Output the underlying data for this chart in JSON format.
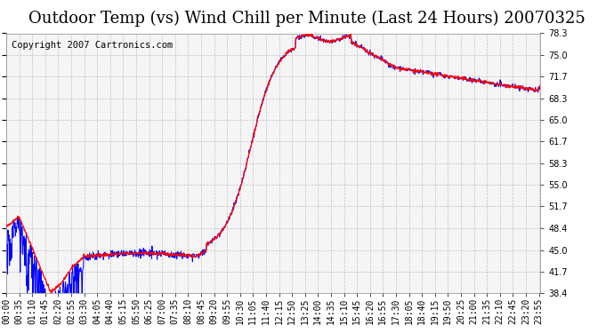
{
  "title": "Outdoor Temp (vs) Wind Chill per Minute (Last 24 Hours) 20070325",
  "copyright_text": "Copyright 2007 Cartronics.com",
  "background_color": "#ffffff",
  "plot_background_color": "#ffffff",
  "grid_color": "#aaaaaa",
  "line_color_temp": "#ff0000",
  "line_color_windchill": "#0000ff",
  "ylim": [
    38.4,
    78.3
  ],
  "yticks": [
    38.4,
    41.7,
    45.0,
    48.4,
    51.7,
    55.0,
    58.3,
    61.7,
    65.0,
    68.3,
    71.7,
    75.0,
    78.3
  ],
  "n_minutes": 1440,
  "title_fontsize": 13,
  "copyright_fontsize": 7.5,
  "tick_fontsize": 7,
  "ylabel_fontsize": 8
}
